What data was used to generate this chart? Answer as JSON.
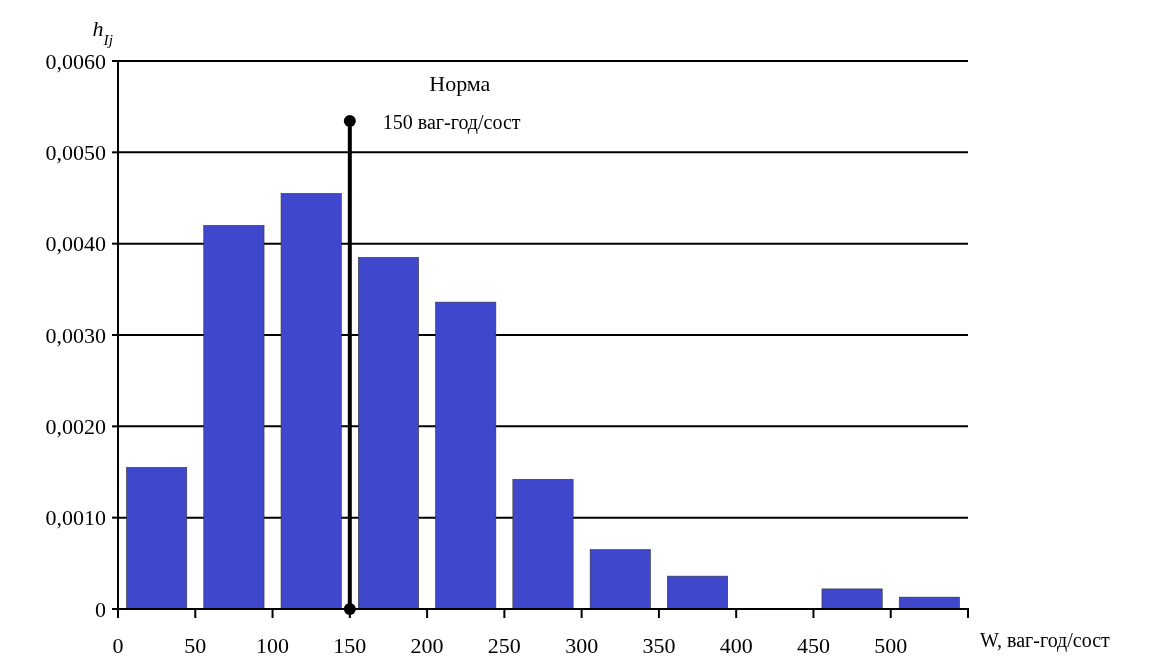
{
  "chart_data": {
    "type": "bar",
    "xlabel": "W, ваг-год/сост",
    "ylabel": "h$_{Ij}$",
    "x": [
      25,
      75,
      125,
      175,
      225,
      275,
      325,
      375,
      425,
      475,
      525
    ],
    "values": [
      0.00155,
      0.0042,
      0.00455,
      0.00385,
      0.00336,
      0.00142,
      0.00065,
      0.00036,
      0,
      0.00022,
      0.00013
    ],
    "color": "#3f48cc",
    "xlim": [
      0,
      550
    ],
    "xticks": [
      0,
      50,
      100,
      150,
      200,
      250,
      300,
      350,
      400,
      450,
      500
    ],
    "ylim": [
      0,
      0.006
    ],
    "yticks": [
      {
        "value": 0,
        "label": "0"
      },
      {
        "value": 0.001,
        "label": "0,0010"
      },
      {
        "value": 0.002,
        "label": "0,0020"
      },
      {
        "value": 0.003,
        "label": "0,0030"
      },
      {
        "value": 0.004,
        "label": "0,0040"
      },
      {
        "value": 0.005,
        "label": "0,0050"
      },
      {
        "value": 0.006,
        "label": "0,0060"
      }
    ],
    "grid": "y",
    "ref_lines": [
      {
        "axis": "x",
        "value": 150,
        "label": "Норма",
        "color": "#000000"
      }
    ],
    "annotations": [
      "150 ваг-год/сост"
    ]
  }
}
